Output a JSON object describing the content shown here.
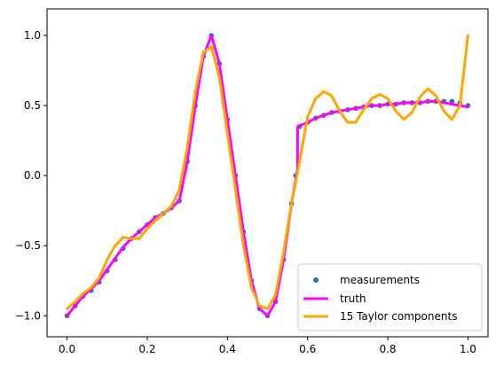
{
  "chart_data": {
    "type": "line",
    "xlim": [
      -0.05,
      1.05
    ],
    "ylim": [
      -1.15,
      1.19
    ],
    "x_ticks": [
      0.0,
      0.2,
      0.4,
      0.6,
      0.8,
      1.0
    ],
    "x_tick_labels": [
      "0.0",
      "0.2",
      "0.4",
      "0.6",
      "0.8",
      "1.0"
    ],
    "y_ticks": [
      -1.0,
      -0.5,
      0.0,
      0.5,
      1.0
    ],
    "y_tick_labels": [
      "−1.0",
      "−0.5",
      "0.0",
      "0.5",
      "1.0"
    ],
    "grid": false,
    "legend_position": "lower-right",
    "series": [
      {
        "name": "measurements",
        "kind": "scatter",
        "color": "#1f77b4",
        "x": [
          0.0,
          0.02,
          0.04,
          0.06,
          0.08,
          0.1,
          0.12,
          0.14,
          0.16,
          0.18,
          0.2,
          0.22,
          0.24,
          0.26,
          0.28,
          0.3,
          0.32,
          0.34,
          0.36,
          0.38,
          0.4,
          0.42,
          0.44,
          0.46,
          0.48,
          0.5,
          0.52,
          0.54,
          0.56,
          0.57,
          0.58,
          0.6,
          0.62,
          0.64,
          0.66,
          0.68,
          0.7,
          0.72,
          0.74,
          0.76,
          0.78,
          0.8,
          0.82,
          0.84,
          0.86,
          0.88,
          0.9,
          0.92,
          0.94,
          0.96,
          0.98,
          1.0
        ],
        "y": [
          -1.0,
          -0.93,
          -0.86,
          -0.82,
          -0.76,
          -0.68,
          -0.6,
          -0.52,
          -0.45,
          -0.4,
          -0.35,
          -0.3,
          -0.27,
          -0.23,
          -0.18,
          0.1,
          0.5,
          0.85,
          1.0,
          0.8,
          0.4,
          0.0,
          -0.4,
          -0.75,
          -0.95,
          -1.0,
          -0.9,
          -0.6,
          -0.2,
          0.0,
          0.35,
          0.38,
          0.41,
          0.43,
          0.45,
          0.46,
          0.47,
          0.48,
          0.49,
          0.5,
          0.5,
          0.51,
          0.51,
          0.52,
          0.52,
          0.52,
          0.53,
          0.53,
          0.53,
          0.53,
          0.52,
          0.5
        ]
      },
      {
        "name": "truth",
        "kind": "line",
        "color": "#ff00ff",
        "x": [
          0.0,
          0.02,
          0.04,
          0.06,
          0.08,
          0.1,
          0.12,
          0.14,
          0.16,
          0.18,
          0.2,
          0.22,
          0.24,
          0.26,
          0.28,
          0.3,
          0.32,
          0.34,
          0.36,
          0.38,
          0.4,
          0.42,
          0.44,
          0.46,
          0.48,
          0.5,
          0.52,
          0.54,
          0.56,
          0.575,
          0.575,
          0.6,
          0.62,
          0.64,
          0.66,
          0.68,
          0.7,
          0.72,
          0.74,
          0.76,
          0.78,
          0.8,
          0.82,
          0.84,
          0.86,
          0.88,
          0.9,
          0.92,
          0.94,
          0.96,
          0.98,
          1.0
        ],
        "y": [
          -1.0,
          -0.93,
          -0.86,
          -0.81,
          -0.75,
          -0.67,
          -0.59,
          -0.51,
          -0.45,
          -0.4,
          -0.35,
          -0.3,
          -0.27,
          -0.23,
          -0.18,
          0.1,
          0.5,
          0.85,
          1.0,
          0.8,
          0.4,
          0.0,
          -0.4,
          -0.75,
          -0.95,
          -1.0,
          -0.9,
          -0.6,
          -0.2,
          0.05,
          0.35,
          0.38,
          0.41,
          0.43,
          0.45,
          0.46,
          0.47,
          0.48,
          0.49,
          0.5,
          0.5,
          0.51,
          0.51,
          0.52,
          0.52,
          0.52,
          0.53,
          0.53,
          0.52,
          0.51,
          0.5,
          0.49
        ]
      },
      {
        "name": "15 Taylor components",
        "kind": "line",
        "color": "#ffa500",
        "x": [
          0.0,
          0.02,
          0.04,
          0.06,
          0.08,
          0.1,
          0.12,
          0.14,
          0.16,
          0.18,
          0.2,
          0.22,
          0.24,
          0.26,
          0.28,
          0.3,
          0.32,
          0.34,
          0.36,
          0.38,
          0.4,
          0.42,
          0.44,
          0.46,
          0.48,
          0.5,
          0.52,
          0.54,
          0.56,
          0.58,
          0.6,
          0.62,
          0.64,
          0.66,
          0.68,
          0.7,
          0.72,
          0.74,
          0.76,
          0.78,
          0.8,
          0.82,
          0.84,
          0.86,
          0.88,
          0.9,
          0.92,
          0.94,
          0.96,
          0.98,
          0.99,
          1.0
        ],
        "y": [
          -0.95,
          -0.9,
          -0.84,
          -0.8,
          -0.73,
          -0.6,
          -0.5,
          -0.44,
          -0.45,
          -0.45,
          -0.38,
          -0.32,
          -0.27,
          -0.22,
          -0.1,
          0.2,
          0.6,
          0.88,
          0.92,
          0.7,
          0.3,
          -0.1,
          -0.5,
          -0.8,
          -0.93,
          -0.95,
          -0.85,
          -0.55,
          -0.2,
          0.1,
          0.42,
          0.55,
          0.6,
          0.57,
          0.46,
          0.38,
          0.38,
          0.47,
          0.55,
          0.58,
          0.55,
          0.46,
          0.4,
          0.45,
          0.56,
          0.62,
          0.57,
          0.46,
          0.4,
          0.5,
          0.75,
          1.0
        ]
      }
    ]
  }
}
